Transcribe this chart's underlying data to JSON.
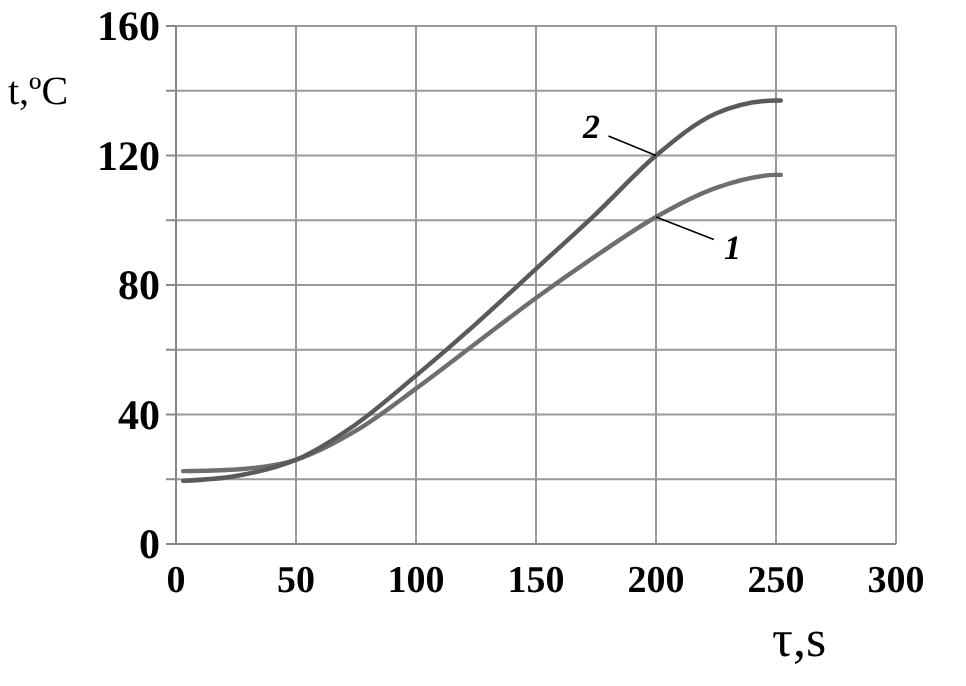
{
  "chart_data": {
    "type": "line",
    "xlabel": "τ,s",
    "ylabel": "t,ºC",
    "xlim": [
      0,
      300
    ],
    "xticks": [
      0,
      50,
      100,
      150,
      200,
      250,
      300
    ],
    "ylim": [
      0,
      160
    ],
    "yticks": [
      0,
      {
        "value": 20,
        "label": null
      },
      40,
      {
        "value": 60,
        "label": null
      },
      80,
      {
        "value": 100,
        "label": null
      },
      120,
      {
        "value": 140,
        "label": null
      },
      160
    ],
    "grid": true,
    "marker": "none",
    "line_style": "solid",
    "series": [
      {
        "name": "1",
        "color": "#6e6e6e",
        "x": [
          3,
          25,
          50,
          75,
          100,
          125,
          150,
          175,
          200,
          225,
          250,
          252
        ],
        "values": [
          22.5,
          23,
          26,
          35,
          48,
          62,
          76,
          89,
          101,
          110,
          114,
          114
        ]
      },
      {
        "name": "2",
        "color": "#5a5a5a",
        "x": [
          3,
          25,
          50,
          75,
          100,
          125,
          150,
          175,
          200,
          225,
          250,
          252
        ],
        "values": [
          19.5,
          21,
          26,
          37,
          52,
          68,
          85,
          102,
          120,
          133,
          137,
          137
        ]
      }
    ]
  }
}
